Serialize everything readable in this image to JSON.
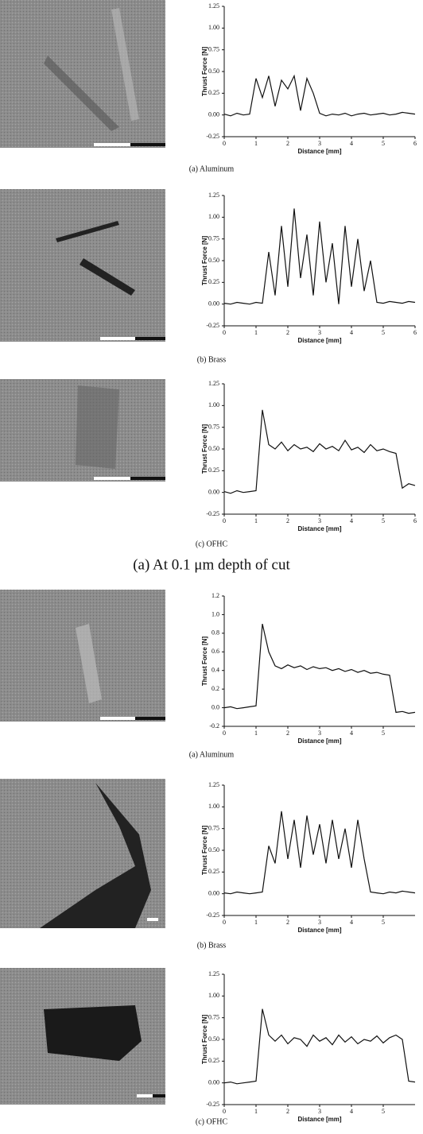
{
  "section_heading": "(a) At 0.1 μm depth of cut",
  "captions": [
    "(a) Aluminum",
    "(b) Brass",
    "(c) OFHC",
    "(a) Aluminum",
    "(b) Brass",
    "(c) OFHC"
  ],
  "chart_data": [
    {
      "type": "line",
      "y_label": "Thrust Force [N]",
      "x_label": "Distance [mm]",
      "color": "#111111",
      "xlim": [
        0,
        6
      ],
      "xticks": [
        0,
        1,
        2,
        3,
        4,
        5,
        6
      ],
      "ylim": [
        -0.25,
        1.25
      ],
      "yticks": [
        -0.25,
        {
          "value": 0,
          "label": "0.00"
        },
        0.25,
        {
          "value": 0.5,
          "label": "0.50"
        },
        0.75,
        {
          "value": 1,
          "label": "1.00"
        },
        1.25
      ],
      "x": [
        0,
        0.2,
        0.4,
        0.6,
        0.8,
        1.0,
        1.2,
        1.4,
        1.6,
        1.8,
        2.0,
        2.2,
        2.4,
        2.6,
        2.8,
        3.0,
        3.2,
        3.4,
        3.6,
        3.8,
        4.0,
        4.2,
        4.4,
        4.6,
        4.8,
        5.0,
        5.2,
        5.4,
        5.6,
        5.8,
        6.0
      ],
      "values": [
        0.01,
        -0.01,
        0.02,
        0,
        0.01,
        0.42,
        0.2,
        0.45,
        0.1,
        0.4,
        0.3,
        0.45,
        0.05,
        0.42,
        0.25,
        0.02,
        -0.01,
        0.01,
        0,
        0.02,
        -0.01,
        0.01,
        0.02,
        0,
        0.01,
        0.02,
        0,
        0.01,
        0.03,
        0.02,
        0.01
      ]
    },
    {
      "type": "line",
      "y_label": "Thrust Force [N]",
      "x_label": "Distance [mm]",
      "color": "#111111",
      "xlim": [
        0,
        6
      ],
      "xticks": [
        0,
        1,
        2,
        3,
        4,
        5,
        6
      ],
      "ylim": [
        -0.25,
        1.25
      ],
      "yticks": [
        -0.25,
        {
          "value": 0,
          "label": "0.00"
        },
        0.25,
        {
          "value": 0.5,
          "label": "0.50"
        },
        0.75,
        {
          "value": 1,
          "label": "1.00"
        },
        1.25
      ],
      "x": [
        0,
        0.2,
        0.4,
        0.6,
        0.8,
        1.0,
        1.2,
        1.4,
        1.6,
        1.8,
        2.0,
        2.2,
        2.4,
        2.6,
        2.8,
        3.0,
        3.2,
        3.4,
        3.6,
        3.8,
        4.0,
        4.2,
        4.4,
        4.6,
        4.8,
        5.0,
        5.2,
        5.4,
        5.6,
        5.8,
        6.0
      ],
      "values": [
        0.01,
        0,
        0.02,
        0.01,
        0,
        0.02,
        0.01,
        0.6,
        0.1,
        0.9,
        0.2,
        1.1,
        0.3,
        0.8,
        0.1,
        0.95,
        0.25,
        0.7,
        0.0,
        0.9,
        0.2,
        0.75,
        0.15,
        0.5,
        0.02,
        0.01,
        0.03,
        0.02,
        0.01,
        0.03,
        0.02
      ]
    },
    {
      "type": "line",
      "y_label": "Thrust Force [N]",
      "x_label": "Distance [mm]",
      "color": "#111111",
      "xlim": [
        0,
        6
      ],
      "xticks": [
        0,
        1,
        2,
        3,
        4,
        5,
        6
      ],
      "ylim": [
        -0.25,
        1.25
      ],
      "yticks": [
        -0.25,
        {
          "value": 0,
          "label": "0.00"
        },
        0.25,
        {
          "value": 0.5,
          "label": "0.50"
        },
        0.75,
        {
          "value": 1,
          "label": "1.00"
        },
        1.25
      ],
      "x": [
        0,
        0.2,
        0.4,
        0.6,
        0.8,
        1.0,
        1.2,
        1.4,
        1.6,
        1.8,
        2.0,
        2.2,
        2.4,
        2.6,
        2.8,
        3.0,
        3.2,
        3.4,
        3.6,
        3.8,
        4.0,
        4.2,
        4.4,
        4.6,
        4.8,
        5.0,
        5.2,
        5.4,
        5.6,
        5.8,
        6.0
      ],
      "values": [
        0.01,
        -0.01,
        0.02,
        0,
        0.01,
        0.02,
        0.95,
        0.55,
        0.5,
        0.58,
        0.48,
        0.55,
        0.5,
        0.52,
        0.47,
        0.56,
        0.5,
        0.53,
        0.48,
        0.6,
        0.49,
        0.52,
        0.46,
        0.55,
        0.48,
        0.5,
        0.47,
        0.45,
        0.05,
        0.1,
        0.08
      ]
    },
    {
      "type": "line",
      "y_label": "Thrust Force [N]",
      "x_label": "Distance [mm]",
      "color": "#111111",
      "xlim": [
        0,
        6
      ],
      "xticks": [
        0,
        1,
        2,
        3,
        4,
        5
      ],
      "ylim": [
        -0.2,
        1.2
      ],
      "yticks": [
        -0.2,
        {
          "value": 0,
          "label": "0.0"
        },
        0.2,
        0.4,
        0.6,
        0.8,
        {
          "value": 1,
          "label": "1.0"
        },
        1.2
      ],
      "x": [
        0,
        0.2,
        0.4,
        0.6,
        0.8,
        1.0,
        1.2,
        1.4,
        1.6,
        1.8,
        2.0,
        2.2,
        2.4,
        2.6,
        2.8,
        3.0,
        3.2,
        3.4,
        3.6,
        3.8,
        4.0,
        4.2,
        4.4,
        4.6,
        4.8,
        5.0,
        5.2,
        5.4,
        5.6,
        5.8,
        6.0
      ],
      "values": [
        0.0,
        0.01,
        -0.01,
        0.0,
        0.01,
        0.02,
        0.9,
        0.6,
        0.45,
        0.42,
        0.46,
        0.43,
        0.45,
        0.41,
        0.44,
        0.42,
        0.43,
        0.4,
        0.42,
        0.39,
        0.41,
        0.38,
        0.4,
        0.37,
        0.38,
        0.36,
        0.35,
        -0.05,
        -0.04,
        -0.06,
        -0.05
      ]
    },
    {
      "type": "line",
      "y_label": "Thrust Force [N]",
      "x_label": "Distance [mm]",
      "color": "#111111",
      "xlim": [
        0,
        6
      ],
      "xticks": [
        0,
        1,
        2,
        3,
        4,
        5
      ],
      "ylim": [
        -0.25,
        1.25
      ],
      "yticks": [
        -0.25,
        {
          "value": 0,
          "label": "0.00"
        },
        0.25,
        {
          "value": 0.5,
          "label": "0.50"
        },
        0.75,
        {
          "value": 1,
          "label": "1.00"
        },
        1.25
      ],
      "x": [
        0,
        0.2,
        0.4,
        0.6,
        0.8,
        1.0,
        1.2,
        1.4,
        1.6,
        1.8,
        2.0,
        2.2,
        2.4,
        2.6,
        2.8,
        3.0,
        3.2,
        3.4,
        3.6,
        3.8,
        4.0,
        4.2,
        4.4,
        4.6,
        4.8,
        5.0,
        5.2,
        5.4,
        5.6,
        5.8,
        6.0
      ],
      "values": [
        0.01,
        0,
        0.02,
        0.01,
        0,
        0.01,
        0.02,
        0.55,
        0.35,
        0.95,
        0.4,
        0.85,
        0.3,
        0.9,
        0.45,
        0.8,
        0.35,
        0.85,
        0.4,
        0.75,
        0.3,
        0.85,
        0.4,
        0.02,
        0.01,
        0.0,
        0.02,
        0.01,
        0.03,
        0.02,
        0.01
      ]
    },
    {
      "type": "line",
      "y_label": "Thrust Force [N]",
      "x_label": "Distance [mm]",
      "color": "#111111",
      "xlim": [
        0,
        6
      ],
      "xticks": [
        0,
        1,
        2,
        3,
        4,
        5
      ],
      "ylim": [
        -0.25,
        1.25
      ],
      "yticks": [
        -0.25,
        {
          "value": 0,
          "label": "0.00"
        },
        0.25,
        {
          "value": 0.5,
          "label": "0.50"
        },
        0.75,
        {
          "value": 1,
          "label": "1.00"
        },
        1.25
      ],
      "x": [
        0,
        0.2,
        0.4,
        0.6,
        0.8,
        1.0,
        1.2,
        1.4,
        1.6,
        1.8,
        2.0,
        2.2,
        2.4,
        2.6,
        2.8,
        3.0,
        3.2,
        3.4,
        3.6,
        3.8,
        4.0,
        4.2,
        4.4,
        4.6,
        4.8,
        5.0,
        5.2,
        5.4,
        5.6,
        5.8,
        6.0
      ],
      "values": [
        0.0,
        0.01,
        -0.01,
        0.0,
        0.01,
        0.02,
        0.85,
        0.55,
        0.48,
        0.55,
        0.45,
        0.52,
        0.5,
        0.42,
        0.55,
        0.48,
        0.52,
        0.44,
        0.55,
        0.47,
        0.53,
        0.45,
        0.5,
        0.48,
        0.54,
        0.46,
        0.52,
        0.55,
        0.5,
        0.02,
        0.01
      ]
    }
  ]
}
